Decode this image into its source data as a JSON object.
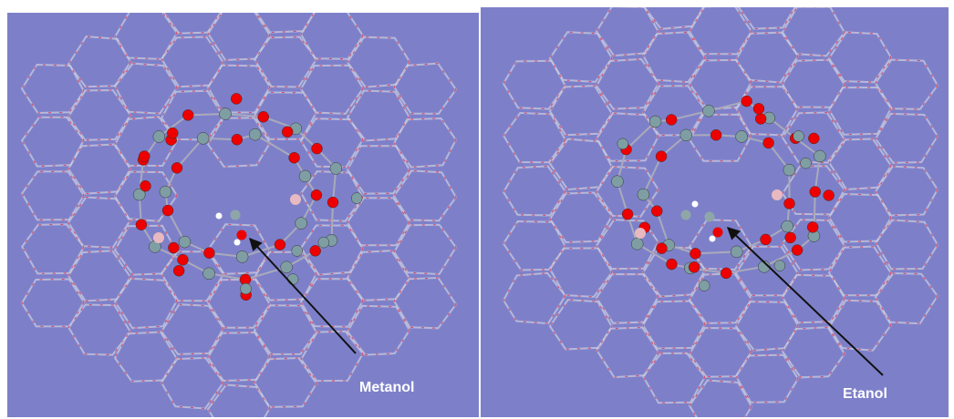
{
  "panels": [
    {
      "label": "Metanol"
    },
    {
      "label": "Etanol"
    }
  ]
}
